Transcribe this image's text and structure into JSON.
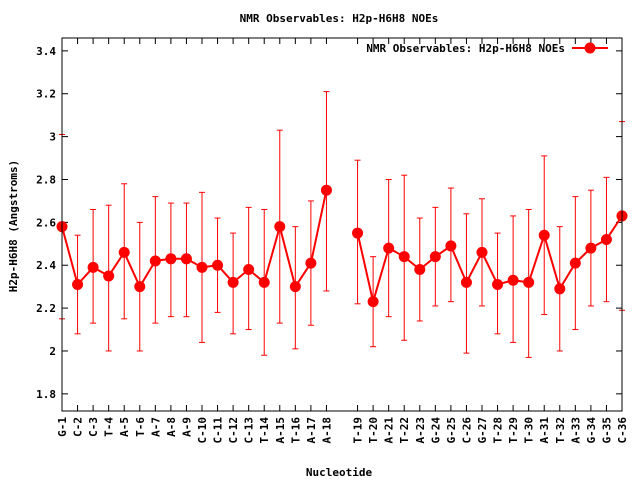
{
  "chart_data": {
    "type": "line",
    "title": "NMR Observables: H2p-H6H8 NOEs",
    "xlabel": "Nucleotide",
    "ylabel": "H2p-H6H8 (Angstroms)",
    "ylim": [
      1.72,
      3.46
    ],
    "yticks": [
      "1.8",
      "2",
      "2.2",
      "2.4",
      "2.6",
      "2.8",
      "3",
      "3.2",
      "3.4"
    ],
    "grid": false,
    "legend_position": "top-right",
    "color": "#ff0000",
    "series": [
      {
        "name": "NMR Observables: H2p-H6H8 NOEs",
        "segments": [
          {
            "categories": [
              "G-1",
              "C-2",
              "C-3",
              "T-4",
              "A-5",
              "T-6",
              "A-7",
              "A-8",
              "A-9",
              "C-10",
              "C-11",
              "C-12",
              "C-13",
              "T-14",
              "A-15",
              "T-16",
              "A-17",
              "A-18"
            ],
            "values": [
              2.58,
              2.31,
              2.39,
              2.35,
              2.46,
              2.3,
              2.42,
              2.43,
              2.43,
              2.39,
              2.4,
              2.32,
              2.38,
              2.32,
              2.58,
              2.3,
              2.41,
              2.75
            ],
            "err_low": [
              2.15,
              2.08,
              2.13,
              2.0,
              2.15,
              2.0,
              2.13,
              2.16,
              2.16,
              2.04,
              2.18,
              2.08,
              2.1,
              1.98,
              2.13,
              2.01,
              2.12,
              2.28
            ],
            "err_high": [
              3.01,
              2.54,
              2.66,
              2.68,
              2.78,
              2.6,
              2.72,
              2.69,
              2.69,
              2.74,
              2.62,
              2.55,
              2.67,
              2.66,
              3.03,
              2.58,
              2.7,
              3.21
            ]
          },
          {
            "categories": [
              "T-19",
              "T-20",
              "A-21",
              "T-22",
              "A-23",
              "G-24",
              "G-25",
              "C-26",
              "G-27",
              "T-28",
              "T-29",
              "T-30",
              "A-31",
              "T-32",
              "A-33",
              "G-34",
              "G-35",
              "C-36"
            ],
            "values": [
              2.55,
              2.23,
              2.48,
              2.44,
              2.38,
              2.44,
              2.49,
              2.32,
              2.46,
              2.31,
              2.33,
              2.32,
              2.54,
              2.29,
              2.41,
              2.48,
              2.52,
              2.63
            ],
            "err_low": [
              2.22,
              2.02,
              2.16,
              2.05,
              2.14,
              2.21,
              2.23,
              1.99,
              2.21,
              2.08,
              2.04,
              1.97,
              2.17,
              2.0,
              2.1,
              2.21,
              2.23,
              2.19
            ],
            "err_high": [
              2.89,
              2.44,
              2.8,
              2.82,
              2.62,
              2.67,
              2.76,
              2.64,
              2.71,
              2.55,
              2.63,
              2.66,
              2.91,
              2.58,
              2.72,
              2.75,
              2.81,
              3.07
            ]
          }
        ]
      }
    ]
  }
}
